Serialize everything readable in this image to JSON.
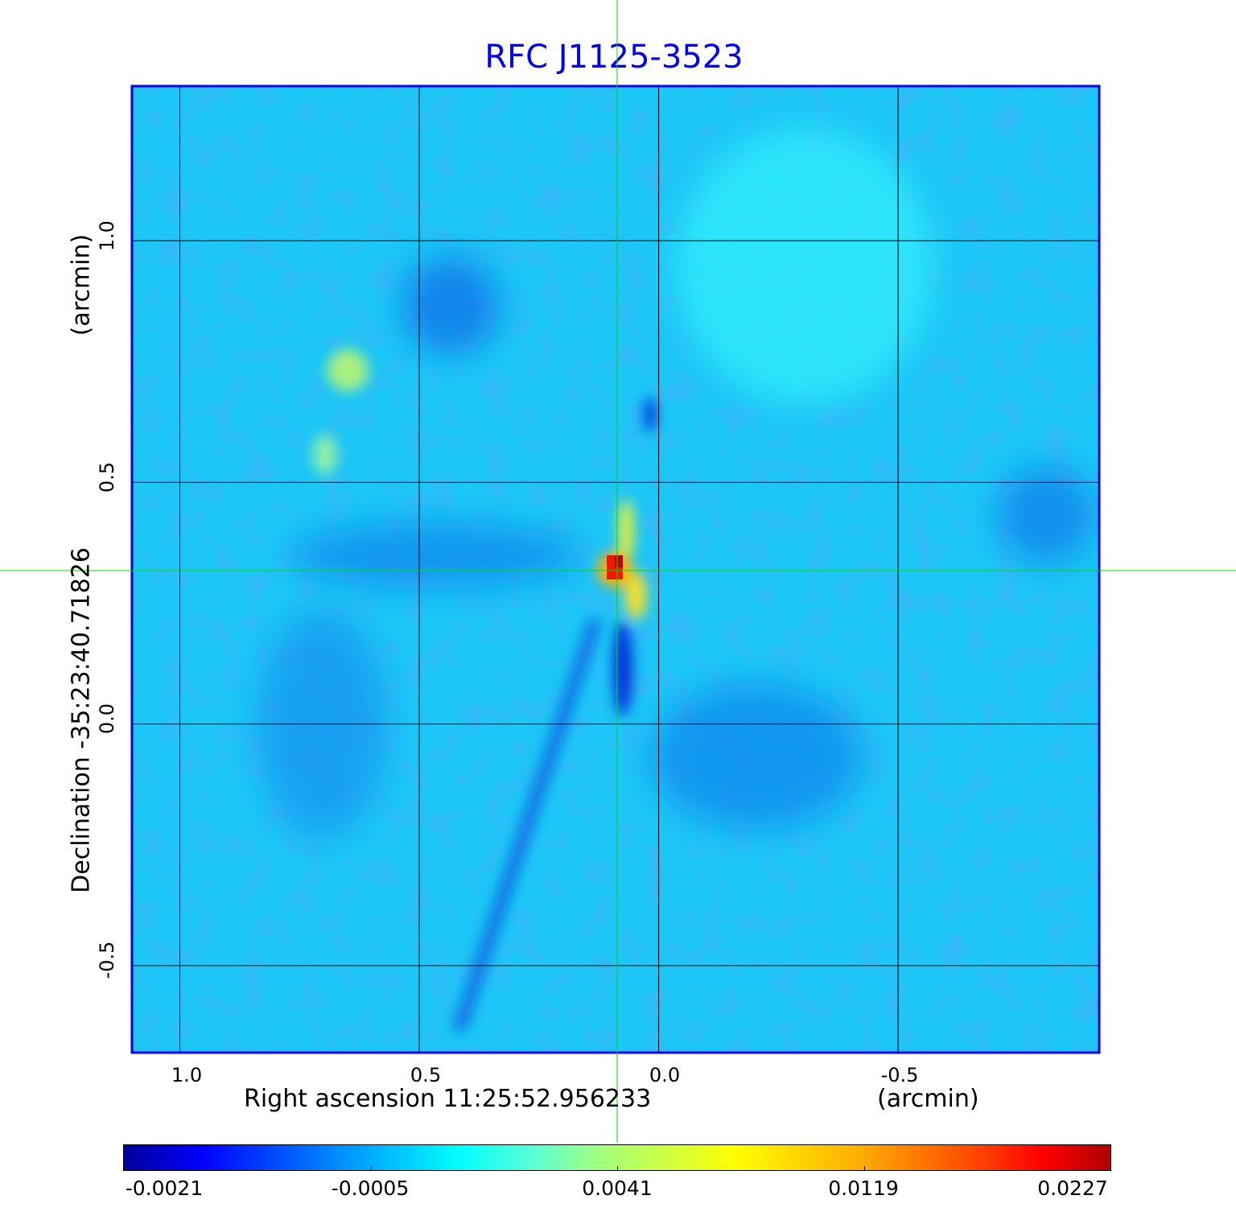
{
  "chart_data": {
    "type": "heatmap",
    "title": "RFC J1125-3523",
    "xlabel": "Right ascension  11:25:52.956233",
    "xunit": "(arcmin)",
    "ylabel": "Declination  -35:23:40.71826",
    "yunit": "(arcmin)",
    "xlim": [
      1.1,
      -0.92
    ],
    "ylim": [
      -0.68,
      1.32
    ],
    "xticks": [
      "1.0",
      "0.5",
      "0.0",
      "-0.5"
    ],
    "xtick_values": [
      1.0,
      0.5,
      0.0,
      -0.5
    ],
    "yticks": [
      "1.0",
      "0.5",
      "0.0",
      "-0.5"
    ],
    "ytick_values": [
      1.0,
      0.5,
      0.0,
      -0.5
    ],
    "grid": true,
    "crosshair": {
      "x": 0.087,
      "y": 0.32
    },
    "peak": {
      "x": 0.087,
      "y": 0.32,
      "value": 0.0227
    },
    "colorbar": {
      "colormap": "jet",
      "ticks": [
        "-0.0021",
        "-0.0005",
        "0.0041",
        "0.0119",
        "0.0227"
      ],
      "tick_values": [
        -0.0021,
        -0.0005,
        0.0041,
        0.0119,
        0.0227
      ]
    }
  },
  "colors": {
    "title": "#0000ee",
    "frame": "#0000ee",
    "crosshair": "#00dd00",
    "background_level": "#18c4f4"
  }
}
